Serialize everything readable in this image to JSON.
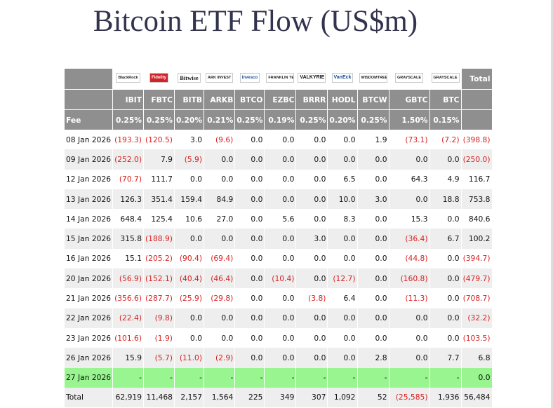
{
  "title": "Bitcoin ETF Flow (US$m)",
  "logos": [
    "BlackRock",
    "Fidelity",
    "Bitwise",
    "ARK INVEST",
    "Invesco",
    "FRANKLIN TEMPLETON",
    "VALKYRIE",
    "VanEck",
    "WISDOMTREE",
    "GRAYSCALE",
    "GRAYSCALE"
  ],
  "total_header": "Total",
  "tickers": [
    "IBIT",
    "FBTC",
    "BITB",
    "ARKB",
    "BTCO",
    "EZBC",
    "BRRR",
    "HODL",
    "BTCW",
    "GBTC",
    "BTC"
  ],
  "fee_label": "Fee",
  "fees": [
    "0.25%",
    "0.25%",
    "0.20%",
    "0.21%",
    "0.25%",
    "0.19%",
    "0.25%",
    "0.20%",
    "0.25%",
    "1.50%",
    "0.15%"
  ],
  "rows": [
    {
      "date": "08 Jan 2026",
      "values": [
        "(193.3)",
        "(120.5)",
        "3.0",
        "(9.6)",
        "0.0",
        "0.0",
        "0.0",
        "0.0",
        "1.9",
        "(73.1)",
        "(7.2)"
      ],
      "total": "(398.8)"
    },
    {
      "date": "09 Jan 2026",
      "values": [
        "(252.0)",
        "7.9",
        "(5.9)",
        "0.0",
        "0.0",
        "0.0",
        "0.0",
        "0.0",
        "0.0",
        "0.0",
        "0.0"
      ],
      "total": "(250.0)"
    },
    {
      "date": "12 Jan 2026",
      "values": [
        "(70.7)",
        "111.7",
        "0.0",
        "0.0",
        "0.0",
        "0.0",
        "0.0",
        "6.5",
        "0.0",
        "64.3",
        "4.9"
      ],
      "total": "116.7"
    },
    {
      "date": "13 Jan 2026",
      "values": [
        "126.3",
        "351.4",
        "159.4",
        "84.9",
        "0.0",
        "0.0",
        "0.0",
        "10.0",
        "3.0",
        "0.0",
        "18.8"
      ],
      "total": "753.8"
    },
    {
      "date": "14 Jan 2026",
      "values": [
        "648.4",
        "125.4",
        "10.6",
        "27.0",
        "0.0",
        "5.6",
        "0.0",
        "8.3",
        "0.0",
        "15.3",
        "0.0"
      ],
      "total": "840.6"
    },
    {
      "date": "15 Jan 2026",
      "values": [
        "315.8",
        "(188.9)",
        "0.0",
        "0.0",
        "0.0",
        "0.0",
        "3.0",
        "0.0",
        "0.0",
        "(36.4)",
        "6.7"
      ],
      "total": "100.2"
    },
    {
      "date": "16 Jan 2026",
      "values": [
        "15.1",
        "(205.2)",
        "(90.4)",
        "(69.4)",
        "0.0",
        "0.0",
        "0.0",
        "0.0",
        "0.0",
        "(44.8)",
        "0.0"
      ],
      "total": "(394.7)"
    },
    {
      "date": "20 Jan 2026",
      "values": [
        "(56.9)",
        "(152.1)",
        "(40.4)",
        "(46.4)",
        "0.0",
        "(10.4)",
        "0.0",
        "(12.7)",
        "0.0",
        "(160.8)",
        "0.0"
      ],
      "total": "(479.7)"
    },
    {
      "date": "21 Jan 2026",
      "values": [
        "(356.6)",
        "(287.7)",
        "(25.9)",
        "(29.8)",
        "0.0",
        "0.0",
        "(3.8)",
        "6.4",
        "0.0",
        "(11.3)",
        "0.0"
      ],
      "total": "(708.7)"
    },
    {
      "date": "22 Jan 2026",
      "values": [
        "(22.4)",
        "(9.8)",
        "0.0",
        "0.0",
        "0.0",
        "0.0",
        "0.0",
        "0.0",
        "0.0",
        "0.0",
        "0.0"
      ],
      "total": "(32.2)"
    },
    {
      "date": "23 Jan 2026",
      "values": [
        "(101.6)",
        "(1.9)",
        "0.0",
        "0.0",
        "0.0",
        "0.0",
        "0.0",
        "0.0",
        "0.0",
        "0.0",
        "0.0"
      ],
      "total": "(103.5)"
    },
    {
      "date": "26 Jan 2026",
      "values": [
        "15.9",
        "(5.7)",
        "(11.0)",
        "(2.9)",
        "0.0",
        "0.0",
        "0.0",
        "0.0",
        "2.8",
        "0.0",
        "7.7"
      ],
      "total": "6.8"
    },
    {
      "date": "27 Jan 2026",
      "values": [
        "-",
        "-",
        "-",
        "-",
        "-",
        "-",
        "-",
        "-",
        "-",
        "-",
        "-"
      ],
      "total": "0.0",
      "highlight": true
    }
  ],
  "totals": {
    "label": "Total",
    "values": [
      "62,919",
      "11,468",
      "2,157",
      "1,564",
      "225",
      "349",
      "307",
      "1,092",
      "52",
      "(25,585)",
      "1,936"
    ],
    "total": "56,484"
  },
  "colors": {
    "header_bg": "#8f8f8f",
    "negative": "#d81f1f",
    "highlight_row": "#98f58f",
    "alt_row": "#eeeeee",
    "title": "#33334d"
  }
}
